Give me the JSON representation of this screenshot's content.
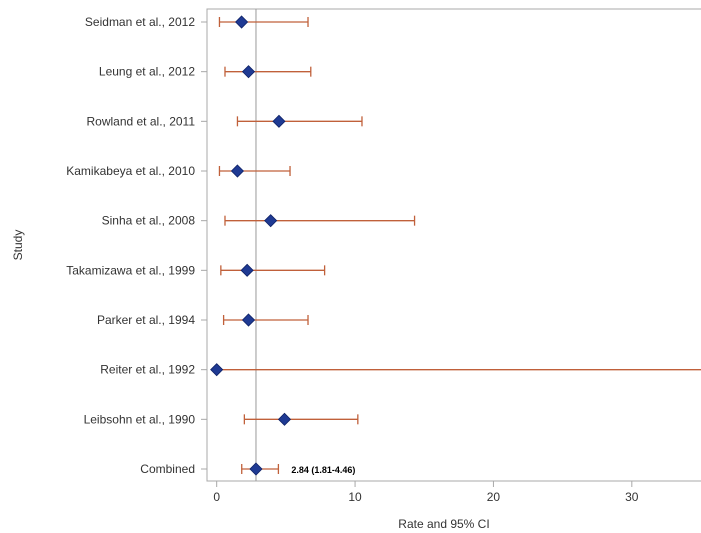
{
  "chart_data": {
    "type": "forest",
    "xlabel": "Rate and 95% CI",
    "ylabel": "Study",
    "xlim": [
      -0.7,
      35
    ],
    "xticks": [
      0,
      10,
      20,
      30
    ],
    "reference_line": 2.84,
    "colors": {
      "marker": "#1f3a93",
      "ci": "#c0603a",
      "reference": "#999999",
      "frame": "#a8a8a8"
    },
    "studies": [
      {
        "label": "Seidman et al., 2012",
        "estimate": 1.8,
        "lower": 0.2,
        "upper": 6.6
      },
      {
        "label": "Leung et al., 2012",
        "estimate": 2.3,
        "lower": 0.6,
        "upper": 6.8
      },
      {
        "label": "Rowland et al., 2011",
        "estimate": 4.5,
        "lower": 1.5,
        "upper": 10.5
      },
      {
        "label": "Kamikabeya et al., 2010",
        "estimate": 1.5,
        "lower": 0.2,
        "upper": 5.3
      },
      {
        "label": "Sinha et al., 2008",
        "estimate": 3.9,
        "lower": 0.6,
        "upper": 14.3
      },
      {
        "label": "Takamizawa et al., 1999",
        "estimate": 2.2,
        "lower": 0.3,
        "upper": 7.8
      },
      {
        "label": "Parker et al., 1994",
        "estimate": 2.3,
        "lower": 0.5,
        "upper": 6.6
      },
      {
        "label": "Reiter et al., 1992",
        "estimate": 0.0,
        "lower": 0.0,
        "upper": 35
      },
      {
        "label": "Leibsohn et al., 1990",
        "estimate": 4.9,
        "lower": 2.0,
        "upper": 10.2
      },
      {
        "label": "Combined",
        "estimate": 2.84,
        "lower": 1.81,
        "upper": 4.46,
        "annotation": "2.84 (1.81-4.46)"
      }
    ]
  }
}
